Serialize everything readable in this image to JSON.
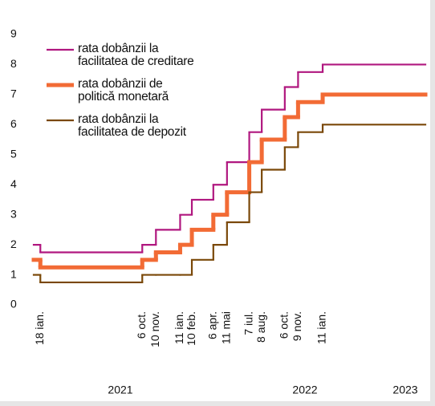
{
  "chart_data": {
    "type": "step",
    "x": [
      "2021-01-01",
      "2021-01-18",
      "2021-10-06",
      "2021-11-10",
      "2022-01-11",
      "2022-02-10",
      "2022-04-06",
      "2022-05-11",
      "2022-07-07",
      "2022-08-08",
      "2022-10-06",
      "2022-11-09",
      "2023-01-11"
    ],
    "xlim": [
      "2021-01-01",
      "2023-10-01"
    ],
    "xticks": [
      {
        "value": "2021-01-18",
        "label": "18 ian."
      },
      {
        "value": "2021-10-06",
        "label": "6 oct."
      },
      {
        "value": "2021-11-10",
        "label": "10 nov."
      },
      {
        "value": "2022-01-11",
        "label": "11 ian."
      },
      {
        "value": "2022-02-10",
        "label": "10 feb."
      },
      {
        "value": "2022-04-06",
        "label": "6 apr."
      },
      {
        "value": "2022-05-11",
        "label": "11 mai"
      },
      {
        "value": "2022-07-07",
        "label": "7 iul."
      },
      {
        "value": "2022-08-08",
        "label": "8 aug."
      },
      {
        "value": "2022-10-06",
        "label": "6 oct."
      },
      {
        "value": "2022-11-09",
        "label": "9 nov."
      },
      {
        "value": "2023-01-11",
        "label": "11 ian."
      }
    ],
    "year_labels": [
      "2021",
      "2022",
      "2023"
    ],
    "ylim": [
      0,
      9
    ],
    "yticks": [
      0,
      1,
      2,
      3,
      4,
      5,
      6,
      7,
      8,
      9
    ],
    "grid": false,
    "series": [
      {
        "name": "rata dobânzii la\nfacilitatea de creditare",
        "color": "#b0177f",
        "width": 2.2,
        "values": [
          2,
          1.75,
          2,
          2.5,
          3,
          3.5,
          4,
          4.75,
          5.75,
          6.5,
          7.25,
          7.75,
          8
        ]
      },
      {
        "name": "rata dobânzii de\npolitică monetară",
        "color": "#f26b35",
        "width": 5,
        "values": [
          1.5,
          1.25,
          1.5,
          1.75,
          2,
          2.5,
          3,
          3.75,
          4.75,
          5.5,
          6.25,
          6.75,
          7
        ]
      },
      {
        "name": "rata dobânzii la\nfacilitatea de depozit",
        "color": "#7a4808",
        "width": 2.2,
        "values": [
          1,
          0.75,
          1,
          1,
          1,
          1.5,
          2,
          2.75,
          3.75,
          4.5,
          5.25,
          5.75,
          6
        ]
      }
    ]
  }
}
